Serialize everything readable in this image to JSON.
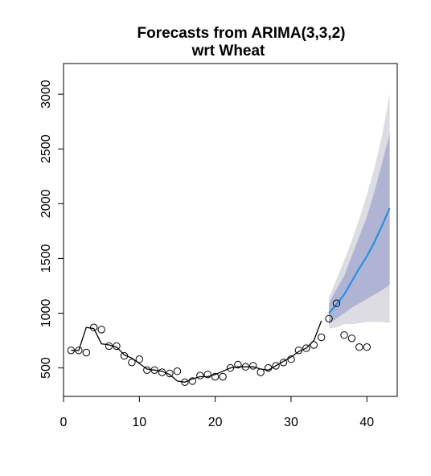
{
  "chart_data": {
    "type": "line",
    "title": "Forecasts from ARIMA(3,3,2)",
    "subtitle": "wrt  Wheat",
    "xlabel": "",
    "ylabel": "",
    "xlim": [
      0,
      44
    ],
    "ylim": [
      240,
      3280
    ],
    "x_ticks": [
      0,
      10,
      20,
      30,
      40
    ],
    "y_ticks": [
      500,
      1000,
      1500,
      2000,
      2500,
      3000
    ],
    "grid": false,
    "colors": {
      "fitted_line": "#000000",
      "points": "#000000",
      "forecast_line": "#2a8fdd",
      "band_80": "#b0b4d4",
      "band_95": "#dcdce2"
    },
    "series": [
      {
        "kind": "fitted",
        "x": [
          1,
          2,
          3,
          4,
          5,
          6,
          7,
          8,
          9,
          10,
          11,
          12,
          13,
          14,
          15,
          16,
          17,
          18,
          19,
          20,
          21,
          22,
          23,
          24,
          25,
          26,
          27,
          28,
          29,
          30,
          31,
          32,
          33,
          34
        ],
        "values": [
          660,
          660,
          870,
          860,
          720,
          710,
          690,
          620,
          590,
          540,
          490,
          480,
          470,
          440,
          380,
          370,
          400,
          420,
          420,
          440,
          470,
          500,
          510,
          510,
          510,
          490,
          480,
          520,
          560,
          600,
          650,
          680,
          750,
          930
        ]
      },
      {
        "kind": "actual",
        "x": [
          1,
          2,
          3,
          4,
          5,
          6,
          7,
          8,
          9,
          10,
          11,
          12,
          13,
          14,
          15,
          16,
          17,
          18,
          19,
          20,
          21,
          22,
          23,
          24,
          25,
          26,
          27,
          28,
          29,
          30,
          31,
          32,
          33,
          34,
          35,
          36,
          37,
          38,
          39,
          40
        ],
        "values": [
          660,
          660,
          640,
          870,
          850,
          700,
          700,
          610,
          550,
          580,
          480,
          480,
          460,
          450,
          470,
          370,
          380,
          430,
          440,
          420,
          420,
          500,
          530,
          510,
          520,
          460,
          500,
          520,
          550,
          580,
          660,
          680,
          710,
          780,
          950,
          1090,
          800,
          770,
          690,
          690
        ]
      },
      {
        "kind": "forecast",
        "x": [
          35,
          36,
          37,
          38,
          39,
          40,
          41,
          42,
          43
        ],
        "values": [
          1000,
          1080,
          1170,
          1290,
          1410,
          1520,
          1650,
          1800,
          1960
        ]
      }
    ],
    "band_95": {
      "x": [
        35,
        36,
        37,
        38,
        39,
        40,
        41,
        42,
        43
      ],
      "lower": [
        860,
        870,
        900,
        900,
        910,
        920,
        920,
        920,
        910
      ],
      "upper": [
        1140,
        1310,
        1480,
        1660,
        1860,
        2080,
        2330,
        2620,
        3000
      ]
    },
    "band_80": {
      "x": [
        35,
        36,
        37,
        38,
        39,
        40,
        41,
        42,
        43
      ],
      "lower": [
        900,
        950,
        1000,
        1050,
        1090,
        1130,
        1170,
        1210,
        1260
      ],
      "upper": [
        1090,
        1220,
        1340,
        1520,
        1700,
        1880,
        2110,
        2370,
        2640
      ]
    }
  }
}
